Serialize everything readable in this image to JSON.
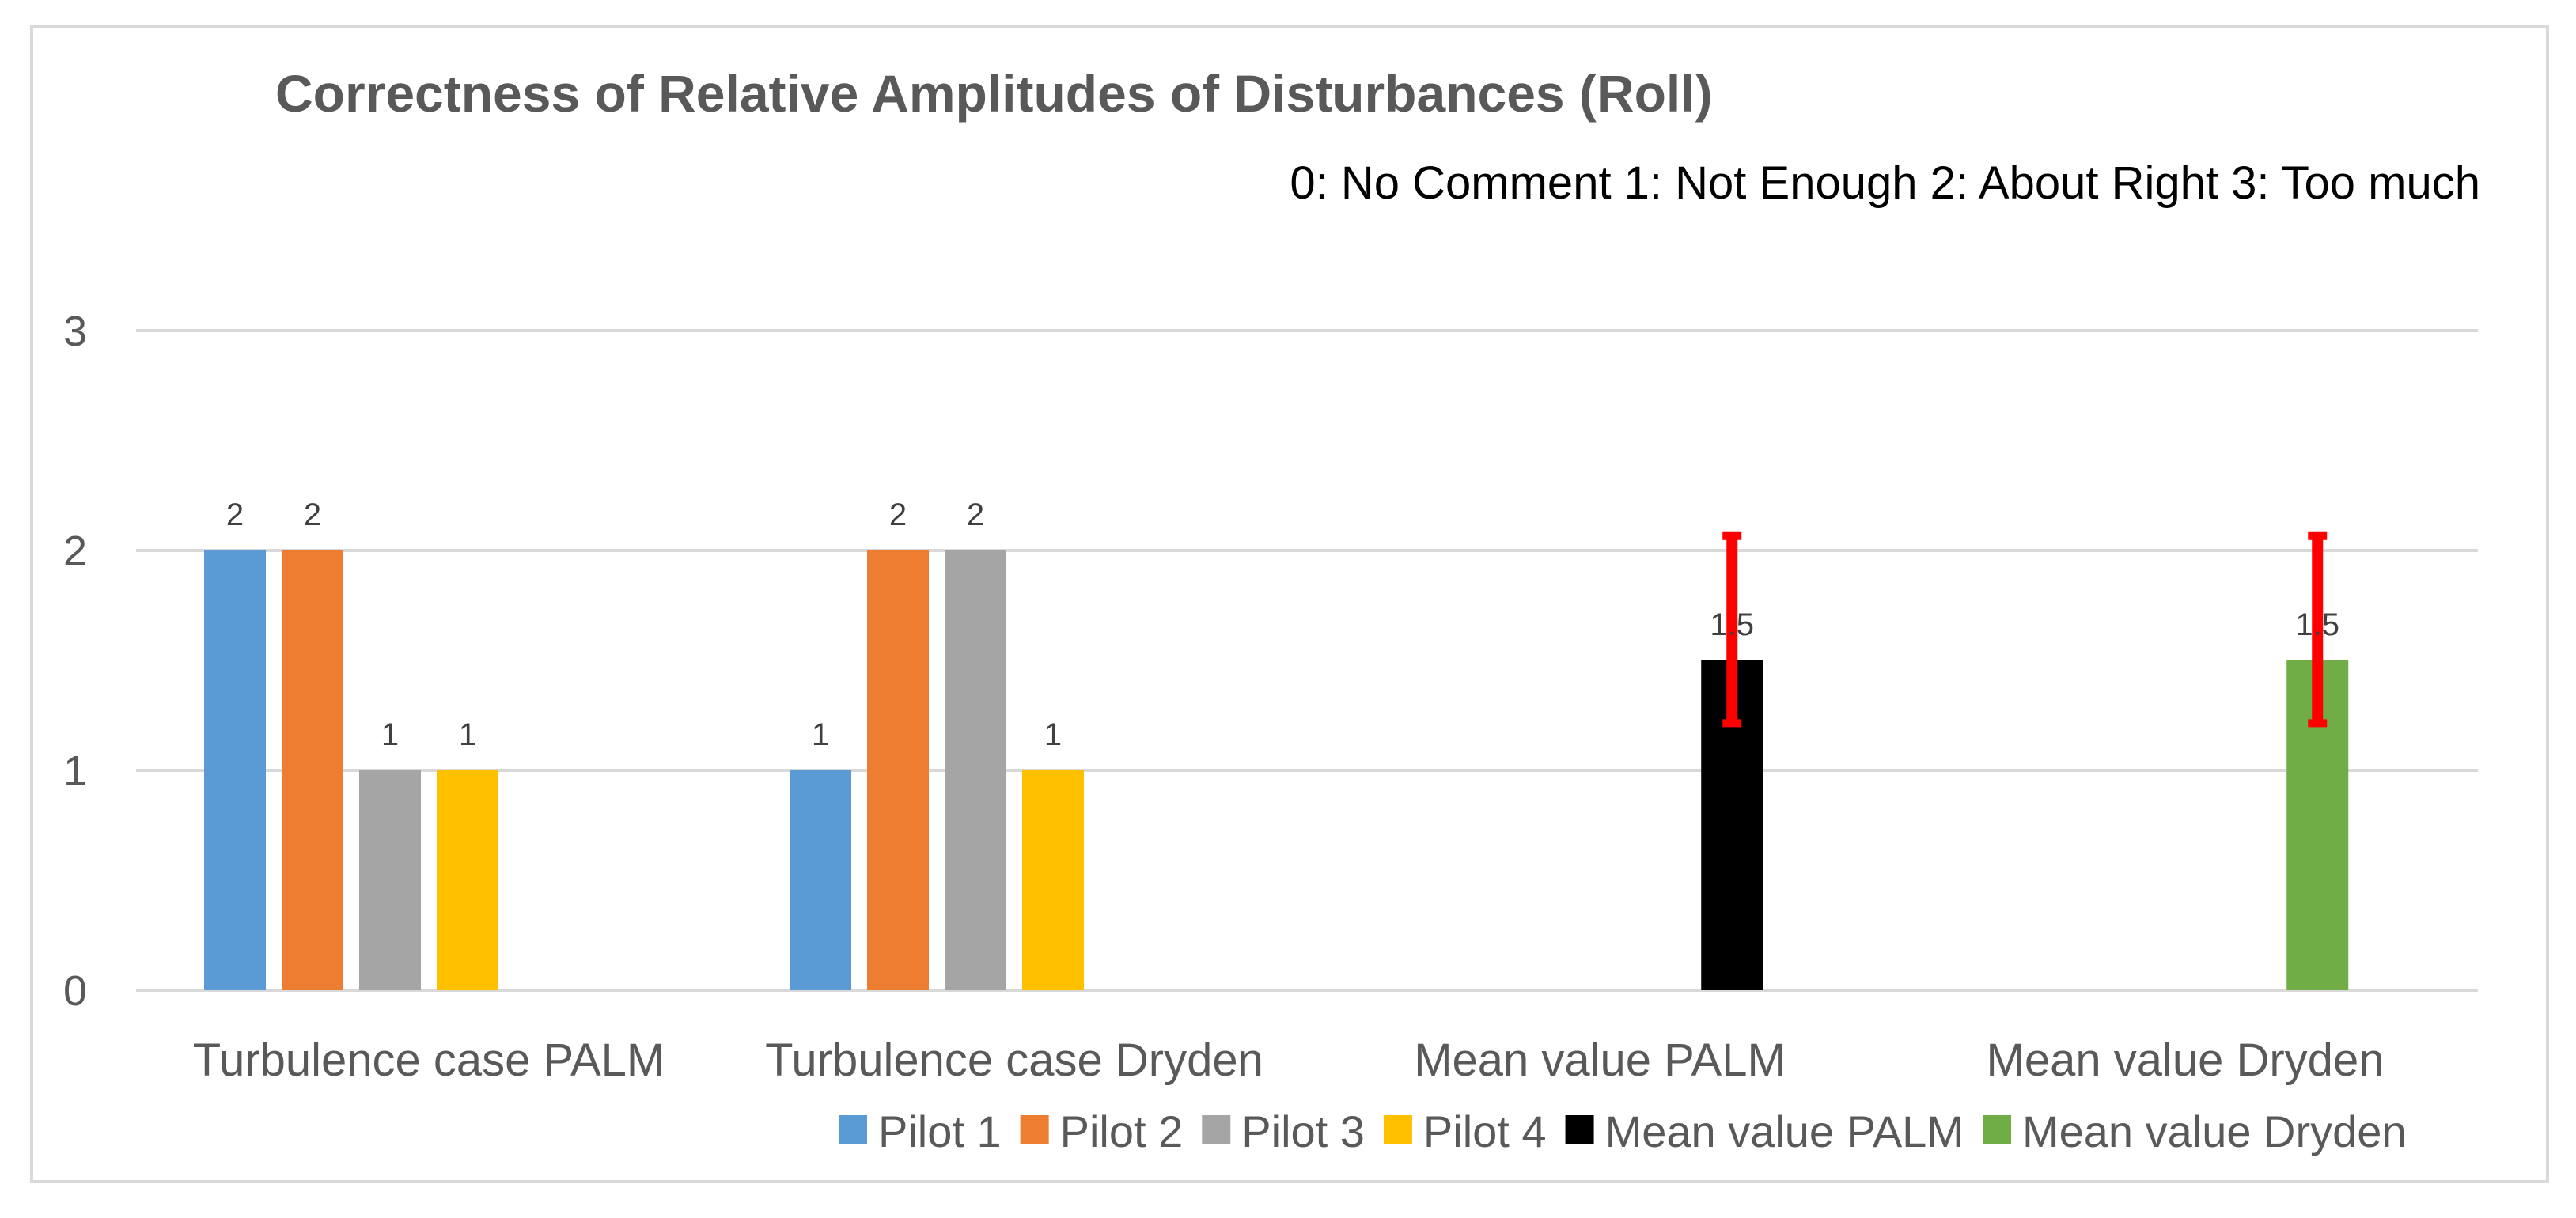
{
  "colors": {
    "Pilot 1": "#5b9bd5",
    "Pilot 2": "#ed7d31",
    "Pilot 3": "#a5a5a5",
    "Pilot 4": "#ffc000",
    "Mean value PALM": "#000000",
    "Mean value Dryden": "#70ad47",
    "error_bar": "#ff0000"
  },
  "chart_data": {
    "type": "bar",
    "title": "Correctness of Relative Amplitudes of Disturbances (Roll)",
    "subtitle": "0:  No Comment  1: Not Enough 2: About Right 3: Too much",
    "xlabel": "",
    "ylabel": "",
    "ylim": [
      0,
      3
    ],
    "yticks": [
      "0",
      "1",
      "2",
      "3"
    ],
    "grid": true,
    "legend_position": "bottom",
    "categories": [
      "Turbulence case PALM",
      "Turbulence case Dryden",
      "Mean value PALM",
      "Mean value Dryden"
    ],
    "series": [
      {
        "name": "Pilot 1",
        "values": [
          2,
          1,
          null,
          null
        ],
        "labels": [
          "2",
          "1",
          null,
          null
        ]
      },
      {
        "name": "Pilot 2",
        "values": [
          2,
          2,
          null,
          null
        ],
        "labels": [
          "2",
          "2",
          null,
          null
        ]
      },
      {
        "name": "Pilot 3",
        "values": [
          1,
          2,
          null,
          null
        ],
        "labels": [
          "1",
          "2",
          null,
          null
        ]
      },
      {
        "name": "Pilot 4",
        "values": [
          1,
          1,
          null,
          null
        ],
        "labels": [
          "1",
          "1",
          null,
          null
        ]
      },
      {
        "name": "Mean value PALM",
        "values": [
          null,
          null,
          1.5,
          null
        ],
        "labels": [
          null,
          null,
          "1.5",
          null
        ],
        "error": [
          null,
          null,
          [
            1.2,
            2.08
          ],
          null
        ]
      },
      {
        "name": "Mean value Dryden",
        "values": [
          null,
          null,
          null,
          1.5
        ],
        "labels": [
          null,
          null,
          null,
          "1.5"
        ],
        "error": [
          null,
          null,
          null,
          [
            1.2,
            2.08
          ]
        ]
      }
    ]
  }
}
